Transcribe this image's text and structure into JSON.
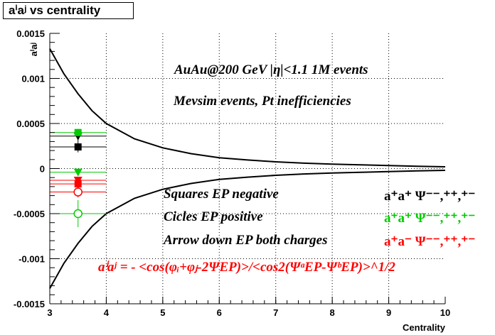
{
  "chart_data": {
    "type": "scatter",
    "title": "aⁱaʲ vs centrality",
    "xlabel": "Centrality",
    "ylabel": "aⁱaʲ",
    "xlim": [
      3,
      10
    ],
    "ylim": [
      -0.0015,
      0.0015
    ],
    "grid": true,
    "xticks": [
      "3",
      "4",
      "5",
      "6",
      "7",
      "8",
      "9",
      "10"
    ],
    "yticks": [
      "-0.0015",
      "-0.001",
      "-0.0005",
      "0",
      "0.0005",
      "0.001",
      "0.0015"
    ],
    "envelope": {
      "x": [
        3.0,
        3.25,
        3.5,
        3.75,
        4.0,
        4.5,
        5.0,
        5.5,
        6.0,
        6.5,
        7.0,
        7.5,
        8.0,
        8.5,
        9.0,
        9.5,
        10.0
      ],
      "upper": [
        0.00133,
        0.00105,
        0.00083,
        0.00064,
        0.0005,
        0.00033,
        0.00023,
        0.000165,
        0.00012,
        9.5e-05,
        7.5e-05,
        6e-05,
        5e-05,
        4.2e-05,
        3.3e-05,
        2.5e-05,
        2e-05
      ],
      "lower": [
        -0.00133,
        -0.00105,
        -0.00083,
        -0.00064,
        -0.0005,
        -0.00033,
        -0.00023,
        -0.000165,
        -0.00012,
        -9.5e-05,
        -7.5e-05,
        -6e-05,
        -5e-05,
        -4.2e-05,
        -3.3e-05,
        -2.5e-05,
        -2e-05
      ]
    },
    "series": [
      {
        "color": "#000000",
        "marker": "square",
        "x": 3.5,
        "y": 0.00024,
        "yerr": 6e-05
      },
      {
        "color": "#000000",
        "marker": "triangle-down",
        "x": 3.5,
        "y": 0.00036,
        "yerr": 6e-05
      },
      {
        "color": "#00cc00",
        "marker": "square",
        "x": 3.5,
        "y": 0.0004,
        "yerr": 4e-05
      },
      {
        "color": "#00cc00",
        "marker": "triangle-down",
        "x": 3.5,
        "y": -4e-05,
        "yerr": 3e-05
      },
      {
        "color": "#00cc00",
        "marker": "circle-open",
        "x": 3.5,
        "y": -0.0005,
        "yerr": 0.00015
      },
      {
        "color": "#ff0000",
        "marker": "square",
        "x": 3.5,
        "y": -0.00017,
        "yerr": 4e-05
      },
      {
        "color": "#ff0000",
        "marker": "triangle-down",
        "x": 3.5,
        "y": -0.00013,
        "yerr": 3e-05
      },
      {
        "color": "#ff0000",
        "marker": "circle-open",
        "x": 3.5,
        "y": -0.00026,
        "yerr": 6e-05
      }
    ],
    "annotations": {
      "line1": "AuAu@200 GeV |η|<1.1 1M events",
      "line2": "Mevsim events, Pt inefficiencies",
      "squares": "Squares EP negative",
      "circles": "Cicles EP positive",
      "arrows": "Arrow down EP both charges",
      "formula": "aⁱaʲ = - <cos(φᵢ+φⱼ-2ΨEP)>/<cos2(ΨᵃEP-ΨᵇEP)>^1/2"
    },
    "legend": [
      {
        "label": "a⁺a⁺  Ψ⁻⁻,⁺⁺,⁺⁻",
        "color": "#000000"
      },
      {
        "label": "a⁺a⁺  Ψ⁻⁻,⁺⁺,⁺⁻",
        "color": "#00cc00"
      },
      {
        "label": "a⁺a⁻  Ψ⁻⁻,⁺⁺,⁺⁻",
        "color": "#ff0000"
      }
    ]
  }
}
